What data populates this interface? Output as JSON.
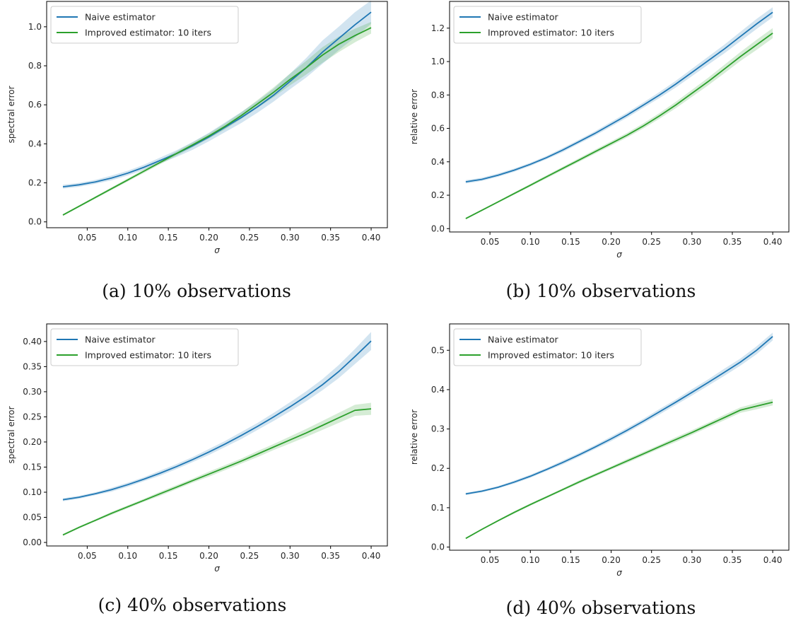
{
  "figure": {
    "colors": {
      "naive": "#1f77b4",
      "improved": "#2ca02c"
    }
  },
  "chart_data": [
    {
      "type": "line",
      "caption": "(a) 10% observations",
      "xlabel": "σ",
      "ylabel": "spectral error",
      "xlim": [
        0.0,
        0.42
      ],
      "ylim": [
        -0.03,
        1.13
      ],
      "xticks": [
        0.05,
        0.1,
        0.15,
        0.2,
        0.25,
        0.3,
        0.35,
        0.4
      ],
      "xtick_labels": [
        "0.05",
        "0.10",
        "0.15",
        "0.20",
        "0.25",
        "0.30",
        "0.35",
        "0.40"
      ],
      "yticks": [
        0.0,
        0.2,
        0.4,
        0.6,
        0.8,
        1.0
      ],
      "ytick_labels": [
        "0.0",
        "0.2",
        "0.4",
        "0.6",
        "0.8",
        "1.0"
      ],
      "legend_position": "top-left",
      "x": [
        0.02,
        0.04,
        0.06,
        0.08,
        0.1,
        0.12,
        0.14,
        0.16,
        0.18,
        0.2,
        0.22,
        0.24,
        0.26,
        0.28,
        0.3,
        0.32,
        0.34,
        0.36,
        0.38,
        0.4
      ],
      "series": [
        {
          "name": "Naive estimator",
          "values": [
            0.18,
            0.19,
            0.205,
            0.225,
            0.25,
            0.28,
            0.315,
            0.35,
            0.39,
            0.435,
            0.485,
            0.535,
            0.59,
            0.65,
            0.72,
            0.79,
            0.87,
            0.94,
            1.01,
            1.075
          ],
          "band": [
            0.01,
            0.01,
            0.01,
            0.012,
            0.012,
            0.013,
            0.015,
            0.017,
            0.02,
            0.022,
            0.025,
            0.028,
            0.03,
            0.033,
            0.04,
            0.05,
            0.06,
            0.06,
            0.065,
            0.06
          ]
        },
        {
          "name": "Improved estimator: 10 iters",
          "values": [
            0.035,
            0.08,
            0.125,
            0.17,
            0.215,
            0.26,
            0.305,
            0.35,
            0.395,
            0.44,
            0.49,
            0.545,
            0.605,
            0.665,
            0.73,
            0.79,
            0.855,
            0.91,
            0.955,
            0.995
          ],
          "band": [
            0.005,
            0.005,
            0.006,
            0.007,
            0.008,
            0.009,
            0.01,
            0.011,
            0.012,
            0.013,
            0.015,
            0.017,
            0.02,
            0.025,
            0.03,
            0.035,
            0.04,
            0.04,
            0.035,
            0.03
          ]
        }
      ]
    },
    {
      "type": "line",
      "caption": "(b) 10% observations",
      "xlabel": "σ",
      "ylabel": "relative error",
      "xlim": [
        0.0,
        0.42
      ],
      "ylim": [
        -0.02,
        1.36
      ],
      "xticks": [
        0.05,
        0.1,
        0.15,
        0.2,
        0.25,
        0.3,
        0.35,
        0.4
      ],
      "xtick_labels": [
        "0.05",
        "0.10",
        "0.15",
        "0.20",
        "0.25",
        "0.30",
        "0.35",
        "0.40"
      ],
      "yticks": [
        0.0,
        0.2,
        0.4,
        0.6,
        0.8,
        1.0,
        1.2
      ],
      "ytick_labels": [
        "0.0",
        "0.2",
        "0.4",
        "0.6",
        "0.8",
        "1.0",
        "1.2"
      ],
      "legend_position": "top-left",
      "x": [
        0.02,
        0.04,
        0.06,
        0.08,
        0.1,
        0.12,
        0.14,
        0.16,
        0.18,
        0.2,
        0.22,
        0.24,
        0.26,
        0.28,
        0.3,
        0.32,
        0.34,
        0.36,
        0.38,
        0.4
      ],
      "series": [
        {
          "name": "Naive estimator",
          "values": [
            0.28,
            0.295,
            0.32,
            0.35,
            0.385,
            0.425,
            0.47,
            0.52,
            0.57,
            0.625,
            0.68,
            0.74,
            0.8,
            0.865,
            0.935,
            1.005,
            1.075,
            1.15,
            1.225,
            1.295
          ],
          "band": [
            0.01,
            0.01,
            0.01,
            0.01,
            0.01,
            0.01,
            0.012,
            0.012,
            0.013,
            0.014,
            0.015,
            0.016,
            0.018,
            0.02,
            0.022,
            0.024,
            0.026,
            0.028,
            0.03,
            0.03
          ]
        },
        {
          "name": "Improved estimator: 10 iters",
          "values": [
            0.06,
            0.11,
            0.16,
            0.21,
            0.26,
            0.31,
            0.36,
            0.41,
            0.46,
            0.51,
            0.56,
            0.615,
            0.675,
            0.74,
            0.81,
            0.88,
            0.955,
            1.03,
            1.1,
            1.17
          ],
          "band": [
            0.005,
            0.005,
            0.006,
            0.007,
            0.008,
            0.009,
            0.01,
            0.011,
            0.012,
            0.013,
            0.014,
            0.015,
            0.017,
            0.019,
            0.021,
            0.023,
            0.025,
            0.027,
            0.03,
            0.03
          ]
        }
      ]
    },
    {
      "type": "line",
      "caption": "(c) 40% observations",
      "xlabel": "σ",
      "ylabel": "spectral error",
      "xlim": [
        0.0,
        0.42
      ],
      "ylim": [
        -0.007,
        0.435
      ],
      "xticks": [
        0.05,
        0.1,
        0.15,
        0.2,
        0.25,
        0.3,
        0.35,
        0.4
      ],
      "xtick_labels": [
        "0.05",
        "0.10",
        "0.15",
        "0.20",
        "0.25",
        "0.30",
        "0.35",
        "0.40"
      ],
      "yticks": [
        0.0,
        0.05,
        0.1,
        0.15,
        0.2,
        0.25,
        0.3,
        0.35,
        0.4
      ],
      "ytick_labels": [
        "0.00",
        "0.05",
        "0.10",
        "0.15",
        "0.20",
        "0.25",
        "0.30",
        "0.35",
        "0.40"
      ],
      "legend_position": "top-left",
      "x": [
        0.02,
        0.04,
        0.06,
        0.08,
        0.1,
        0.12,
        0.14,
        0.16,
        0.18,
        0.2,
        0.22,
        0.24,
        0.26,
        0.28,
        0.3,
        0.32,
        0.34,
        0.36,
        0.38,
        0.4
      ],
      "series": [
        {
          "name": "Naive estimator",
          "values": [
            0.085,
            0.09,
            0.097,
            0.105,
            0.115,
            0.126,
            0.138,
            0.151,
            0.165,
            0.18,
            0.196,
            0.213,
            0.231,
            0.25,
            0.27,
            0.291,
            0.314,
            0.34,
            0.37,
            0.401
          ],
          "band": [
            0.003,
            0.003,
            0.003,
            0.004,
            0.004,
            0.004,
            0.005,
            0.005,
            0.005,
            0.006,
            0.006,
            0.007,
            0.007,
            0.008,
            0.009,
            0.01,
            0.011,
            0.013,
            0.015,
            0.018
          ]
        },
        {
          "name": "Improved estimator: 10 iters",
          "values": [
            0.015,
            0.03,
            0.044,
            0.058,
            0.071,
            0.084,
            0.097,
            0.11,
            0.123,
            0.136,
            0.149,
            0.162,
            0.176,
            0.19,
            0.204,
            0.218,
            0.233,
            0.248,
            0.263,
            0.266
          ],
          "band": [
            0.002,
            0.002,
            0.002,
            0.003,
            0.003,
            0.003,
            0.004,
            0.004,
            0.004,
            0.005,
            0.005,
            0.005,
            0.006,
            0.006,
            0.007,
            0.008,
            0.009,
            0.01,
            0.011,
            0.012
          ]
        }
      ]
    },
    {
      "type": "line",
      "caption": "(d) 40% observations",
      "xlabel": "σ",
      "ylabel": "relative error",
      "xlim": [
        0.0,
        0.42
      ],
      "ylim": [
        -0.008,
        0.567
      ],
      "xticks": [
        0.05,
        0.1,
        0.15,
        0.2,
        0.25,
        0.3,
        0.35,
        0.4
      ],
      "xtick_labels": [
        "0.05",
        "0.10",
        "0.15",
        "0.20",
        "0.25",
        "0.30",
        "0.35",
        "0.40"
      ],
      "yticks": [
        0.0,
        0.1,
        0.2,
        0.3,
        0.4,
        0.5
      ],
      "ytick_labels": [
        "0.0",
        "0.1",
        "0.2",
        "0.3",
        "0.4",
        "0.5"
      ],
      "legend_position": "top-left",
      "x": [
        0.02,
        0.04,
        0.06,
        0.08,
        0.1,
        0.12,
        0.14,
        0.16,
        0.18,
        0.2,
        0.22,
        0.24,
        0.26,
        0.28,
        0.3,
        0.32,
        0.34,
        0.36,
        0.38,
        0.4
      ],
      "series": [
        {
          "name": "Naive estimator",
          "values": [
            0.135,
            0.142,
            0.152,
            0.165,
            0.18,
            0.197,
            0.215,
            0.234,
            0.254,
            0.275,
            0.297,
            0.32,
            0.344,
            0.368,
            0.393,
            0.418,
            0.444,
            0.47,
            0.5,
            0.535
          ],
          "band": [
            0.003,
            0.003,
            0.003,
            0.004,
            0.004,
            0.004,
            0.005,
            0.005,
            0.005,
            0.006,
            0.006,
            0.006,
            0.007,
            0.007,
            0.008,
            0.008,
            0.009,
            0.009,
            0.01,
            0.01
          ]
        },
        {
          "name": "Improved estimator: 10 iters",
          "values": [
            0.022,
            0.045,
            0.067,
            0.088,
            0.108,
            0.127,
            0.146,
            0.165,
            0.183,
            0.201,
            0.219,
            0.237,
            0.255,
            0.273,
            0.291,
            0.31,
            0.329,
            0.348,
            0.358,
            0.368
          ],
          "band": [
            0.002,
            0.002,
            0.002,
            0.003,
            0.003,
            0.003,
            0.003,
            0.004,
            0.004,
            0.004,
            0.005,
            0.005,
            0.005,
            0.006,
            0.006,
            0.006,
            0.007,
            0.007,
            0.008,
            0.008
          ]
        }
      ]
    }
  ]
}
